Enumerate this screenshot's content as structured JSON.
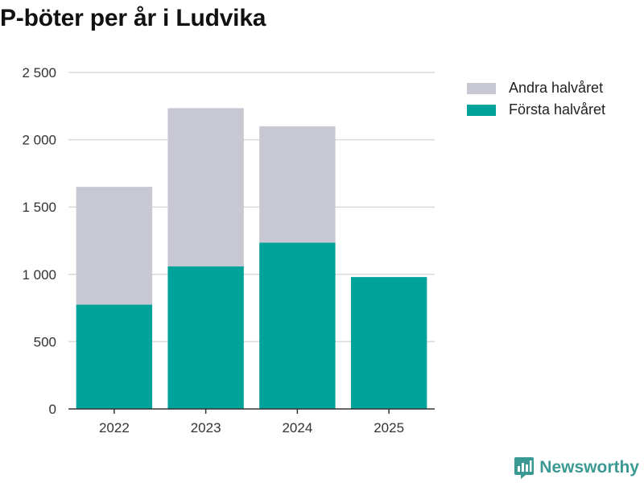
{
  "title": "P-böter per år i Ludvika",
  "brand": {
    "name": "Newsworthy"
  },
  "colors": {
    "forsta": "#00a39a",
    "andra": "#c8c8d2",
    "grid": "#d9d9d9",
    "axis": "#333333"
  },
  "legend": [
    {
      "label": "Andra halvåret",
      "color": "#c8c8d2"
    },
    {
      "label": "Första halvåret",
      "color": "#00a39a"
    }
  ],
  "chart_data": {
    "type": "bar",
    "stacked": true,
    "title": "P-böter per år i Ludvika",
    "categories": [
      "2022",
      "2023",
      "2024",
      "2025"
    ],
    "series": [
      {
        "name": "Första halvåret",
        "values": [
          775,
          1060,
          1235,
          980
        ]
      },
      {
        "name": "Andra halvåret",
        "values": [
          875,
          1175,
          865,
          0
        ]
      }
    ],
    "ylim": [
      0,
      2500
    ],
    "yticks": [
      0,
      500,
      1000,
      1500,
      2000,
      2500
    ],
    "ytick_labels": [
      "0",
      "500",
      "1 000",
      "1 500",
      "2 000",
      "2 500"
    ],
    "grid": true,
    "legend_position": "right"
  }
}
